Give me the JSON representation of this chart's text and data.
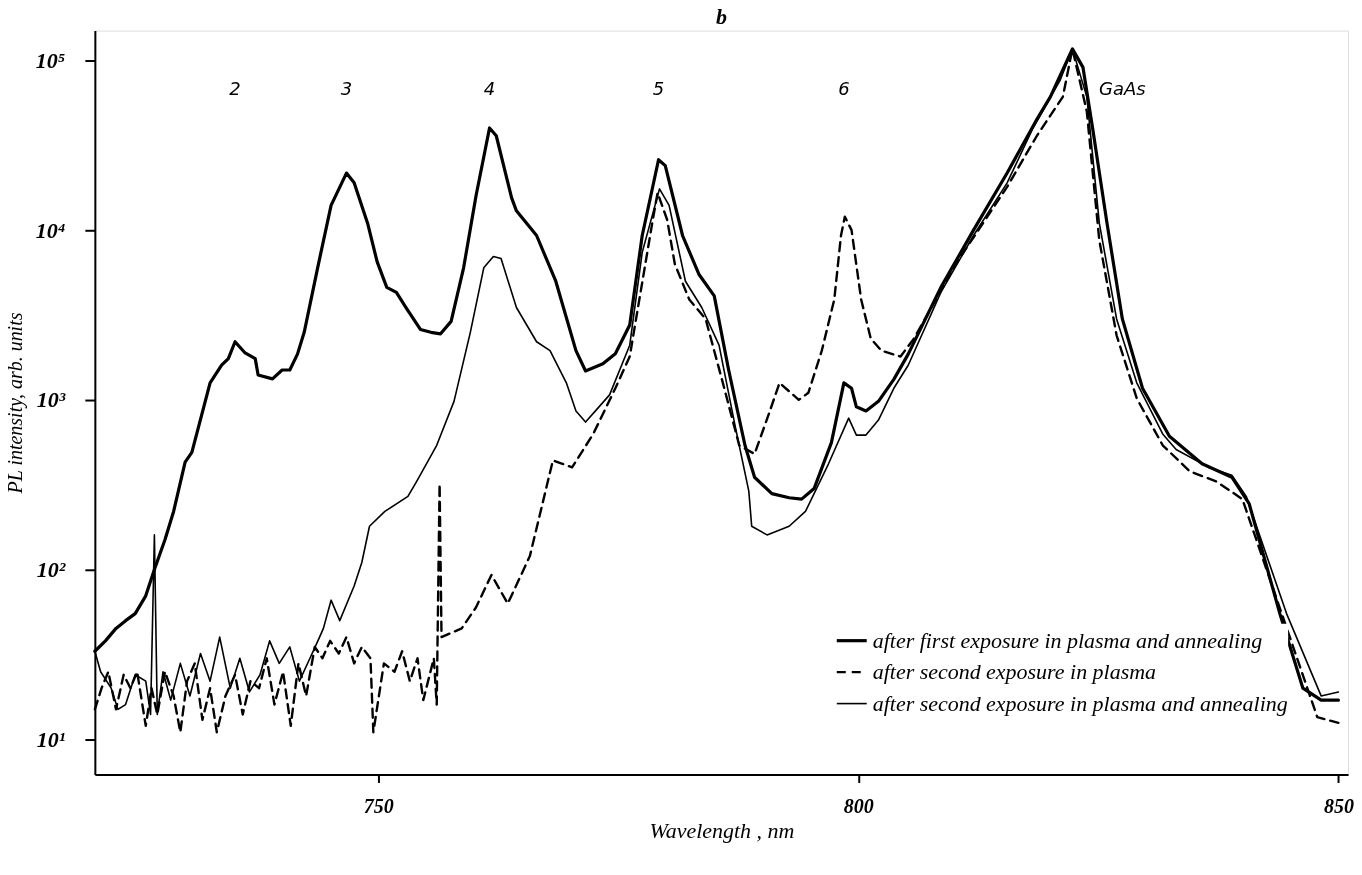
{
  "chart_data": {
    "type": "line",
    "title": "b",
    "xlabel": "Wavelength , nm",
    "ylabel": "PL intensity, arb. units",
    "xlim": [
      720.5,
      851
    ],
    "xticks": [
      750,
      800,
      850
    ],
    "ylim": [
      6.2,
      150000
    ],
    "log": true,
    "yticks": [
      {
        "value": 10,
        "label": "10¹"
      },
      {
        "value": 100,
        "label": "10²"
      },
      {
        "value": 1000,
        "label": "10³"
      },
      {
        "value": 10000,
        "label": "10⁴"
      },
      {
        "value": 100000,
        "label": "10⁵"
      }
    ],
    "grid": false,
    "legend": "bottom right",
    "marker": "none",
    "annotations": [
      "2",
      "3",
      "4",
      "5",
      "6",
      "GaAs"
    ],
    "series": [
      {
        "name": "after first exposure in plasma and annealing",
        "color": "#000000",
        "line_style": "solid",
        "x": [
          720.5,
          721.6,
          722.7,
          723.7,
          724.7,
          725.8,
          726.7,
          727.8,
          728.7,
          729.9,
          730.6,
          732.5,
          733.7,
          734.4,
          735.1,
          736.1,
          737.2,
          737.5,
          739.0,
          740.0,
          740.8,
          741.6,
          742.3,
          743.7,
          745.1,
          746.7,
          747.5,
          748.9,
          749.9,
          750.9,
          751.9,
          752.9,
          754.4,
          755.5,
          756.5,
          757.6,
          758.9,
          760.2,
          761.6,
          762.3,
          763.9,
          764.4,
          766.5,
          768.5,
          770.6,
          771.6,
          773.4,
          774.7,
          776.2,
          777.5,
          779.2,
          779.9,
          781.7,
          783.4,
          785.0,
          786.5,
          788.2,
          789.2,
          791.0,
          792.8,
          794.1,
          795.4,
          797.2,
          798.5,
          799.3,
          799.8,
          800.8,
          802.1,
          803.7,
          805.2,
          808.6,
          812.0,
          815.5,
          818.6,
          820.0,
          822.3,
          823.4,
          824.4,
          825.9,
          827.5,
          829.6,
          832.4,
          835.8,
          838.9,
          840.7,
          843.9,
          846.3,
          848.2,
          850.0
        ],
        "values": [
          33,
          38,
          45,
          50,
          55,
          70,
          100,
          150,
          220,
          430,
          490,
          1260,
          1600,
          1750,
          2200,
          1900,
          1750,
          1400,
          1330,
          1500,
          1500,
          1860,
          2500,
          6000,
          14000,
          21700,
          19000,
          11000,
          6500,
          4600,
          4300,
          3500,
          2600,
          2500,
          2450,
          2900,
          6000,
          16000,
          40000,
          36000,
          15500,
          13000,
          9300,
          5000,
          1950,
          1480,
          1630,
          1870,
          2760,
          9300,
          26000,
          24000,
          9300,
          5500,
          4100,
          1500,
          540,
          350,
          280,
          265,
          260,
          300,
          560,
          1260,
          1170,
          910,
          860,
          980,
          1320,
          1860,
          4600,
          10000,
          21700,
          45000,
          61000,
          117000,
          91000,
          40000,
          11000,
          3000,
          1170,
          610,
          420,
          350,
          245,
          55,
          20,
          17,
          17
        ]
      },
      {
        "name": "after second exposure in plasma",
        "color": "#000000",
        "line_style": "dashed",
        "x": [
          720.5,
          721.2,
          721.9,
          722.7,
          723.5,
          724.2,
          724.9,
          725.8,
          726.4,
          727.0,
          727.8,
          728.7,
          729.4,
          730.1,
          730.9,
          731.7,
          732.5,
          733.2,
          734.1,
          735.1,
          735.9,
          736.7,
          737.6,
          738.4,
          739.2,
          740.1,
          740.9,
          741.7,
          742.5,
          743.4,
          744.2,
          745.0,
          745.9,
          746.7,
          747.5,
          748.3,
          749.2,
          749.5,
          750.6,
          751.7,
          752.5,
          753.3,
          754.1,
          754.7,
          755.8,
          756.1,
          756.4,
          756.6,
          758.7,
          760.2,
          761.8,
          763.5,
          765.8,
          768.2,
          770.2,
          772.4,
          774.7,
          776.2,
          777.2,
          778.6,
          779.1,
          780.1,
          780.9,
          782.4,
          784.1,
          785.8,
          787.6,
          789.2,
          790.7,
          791.8,
          793.8,
          794.8,
          796.2,
          797.5,
          798.2,
          798.6,
          799.3,
          800.3,
          801.3,
          802.4,
          804.4,
          805.8,
          810.3,
          815.5,
          818.6,
          821.3,
          822.3,
          823.8,
          825.1,
          826.9,
          829.0,
          831.7,
          834.5,
          837.3,
          840.0,
          843.9,
          847.8,
          850.0
        ],
        "values": [
          15,
          20,
          25,
          15,
          24,
          20,
          25,
          12,
          20,
          14,
          25,
          18,
          11,
          22,
          28,
          13,
          20,
          11,
          18,
          24,
          14,
          22,
          20,
          30,
          16,
          25,
          12,
          28,
          18,
          35,
          30,
          38,
          32,
          40,
          28,
          35,
          30,
          11,
          28,
          25,
          33,
          22,
          30,
          17,
          30,
          16,
          320,
          40,
          45,
          60,
          93,
          63,
          120,
          440,
          400,
          630,
          1170,
          1800,
          3900,
          11500,
          16600,
          11500,
          6300,
          3900,
          3000,
          1320,
          540,
          480,
          830,
          1260,
          1000,
          1100,
          1950,
          3900,
          9300,
          12000,
          10000,
          3900,
          2300,
          1950,
          1800,
          2300,
          6500,
          18000,
          36000,
          61000,
          117000,
          50000,
          8700,
          2400,
          1020,
          540,
          380,
          330,
          260,
          null,
          13.5,
          12.5
        ]
      },
      {
        "name": "after second exposure in plasma and annealing",
        "color": "#000000",
        "line_style": "solid",
        "x": [
          720.5,
          721.1,
          722.2,
          722.9,
          723.7,
          724.7,
          725.8,
          726.3,
          726.7,
          727.0,
          727.6,
          728.4,
          729.4,
          730.4,
          731.5,
          732.5,
          733.5,
          734.6,
          735.6,
          736.6,
          737.7,
          738.7,
          739.7,
          740.8,
          741.8,
          742.9,
          743.9,
          744.3,
          745.1,
          746.0,
          747.5,
          748.3,
          749.1,
          750.7,
          753.1,
          754.0,
          756.1,
          757.9,
          759.6,
          761.0,
          762.0,
          762.8,
          764.4,
          766.5,
          767.9,
          769.6,
          770.6,
          771.6,
          772.7,
          774.1,
          776.2,
          777.5,
          779.3,
          780.3,
          782.0,
          783.7,
          785.5,
          787.2,
          788.6,
          788.9,
          790.5,
          792.8,
          794.5,
          796.9,
          799.0,
          799.8,
          800.8,
          802.1,
          803.7,
          805.2,
          808.6,
          812.0,
          815.5,
          818.2,
          821.0,
          822.3,
          823.8,
          825.1,
          826.9,
          829.0,
          831.7,
          833.1,
          836.5,
          838.9,
          840.4,
          844.6,
          848.2,
          850.0
        ],
        "values": [
          33,
          25,
          20,
          15,
          16,
          24,
          22,
          14,
          160,
          14,
          25,
          17,
          28,
          18,
          32,
          22,
          40,
          20,
          30,
          19,
          24,
          38,
          28,
          35,
          22,
          30,
          40,
          45,
          66,
          50,
          80,
          110,
          180,
          220,
          270,
          330,
          540,
          980,
          2500,
          6000,
          7000,
          6800,
          3500,
          2200,
          1950,
          1260,
          860,
          740,
          870,
          1070,
          2100,
          7400,
          17500,
          14000,
          5000,
          3500,
          2100,
          690,
          290,
          180,
          160,
          180,
          220,
          420,
          780,
          620,
          620,
          760,
          1170,
          1600,
          4300,
          9300,
          19000,
          40000,
          76000,
          117000,
          61000,
          11000,
          3000,
          1260,
          630,
          510,
          400,
          360,
          270,
          55,
          18,
          19
        ]
      }
    ]
  }
}
